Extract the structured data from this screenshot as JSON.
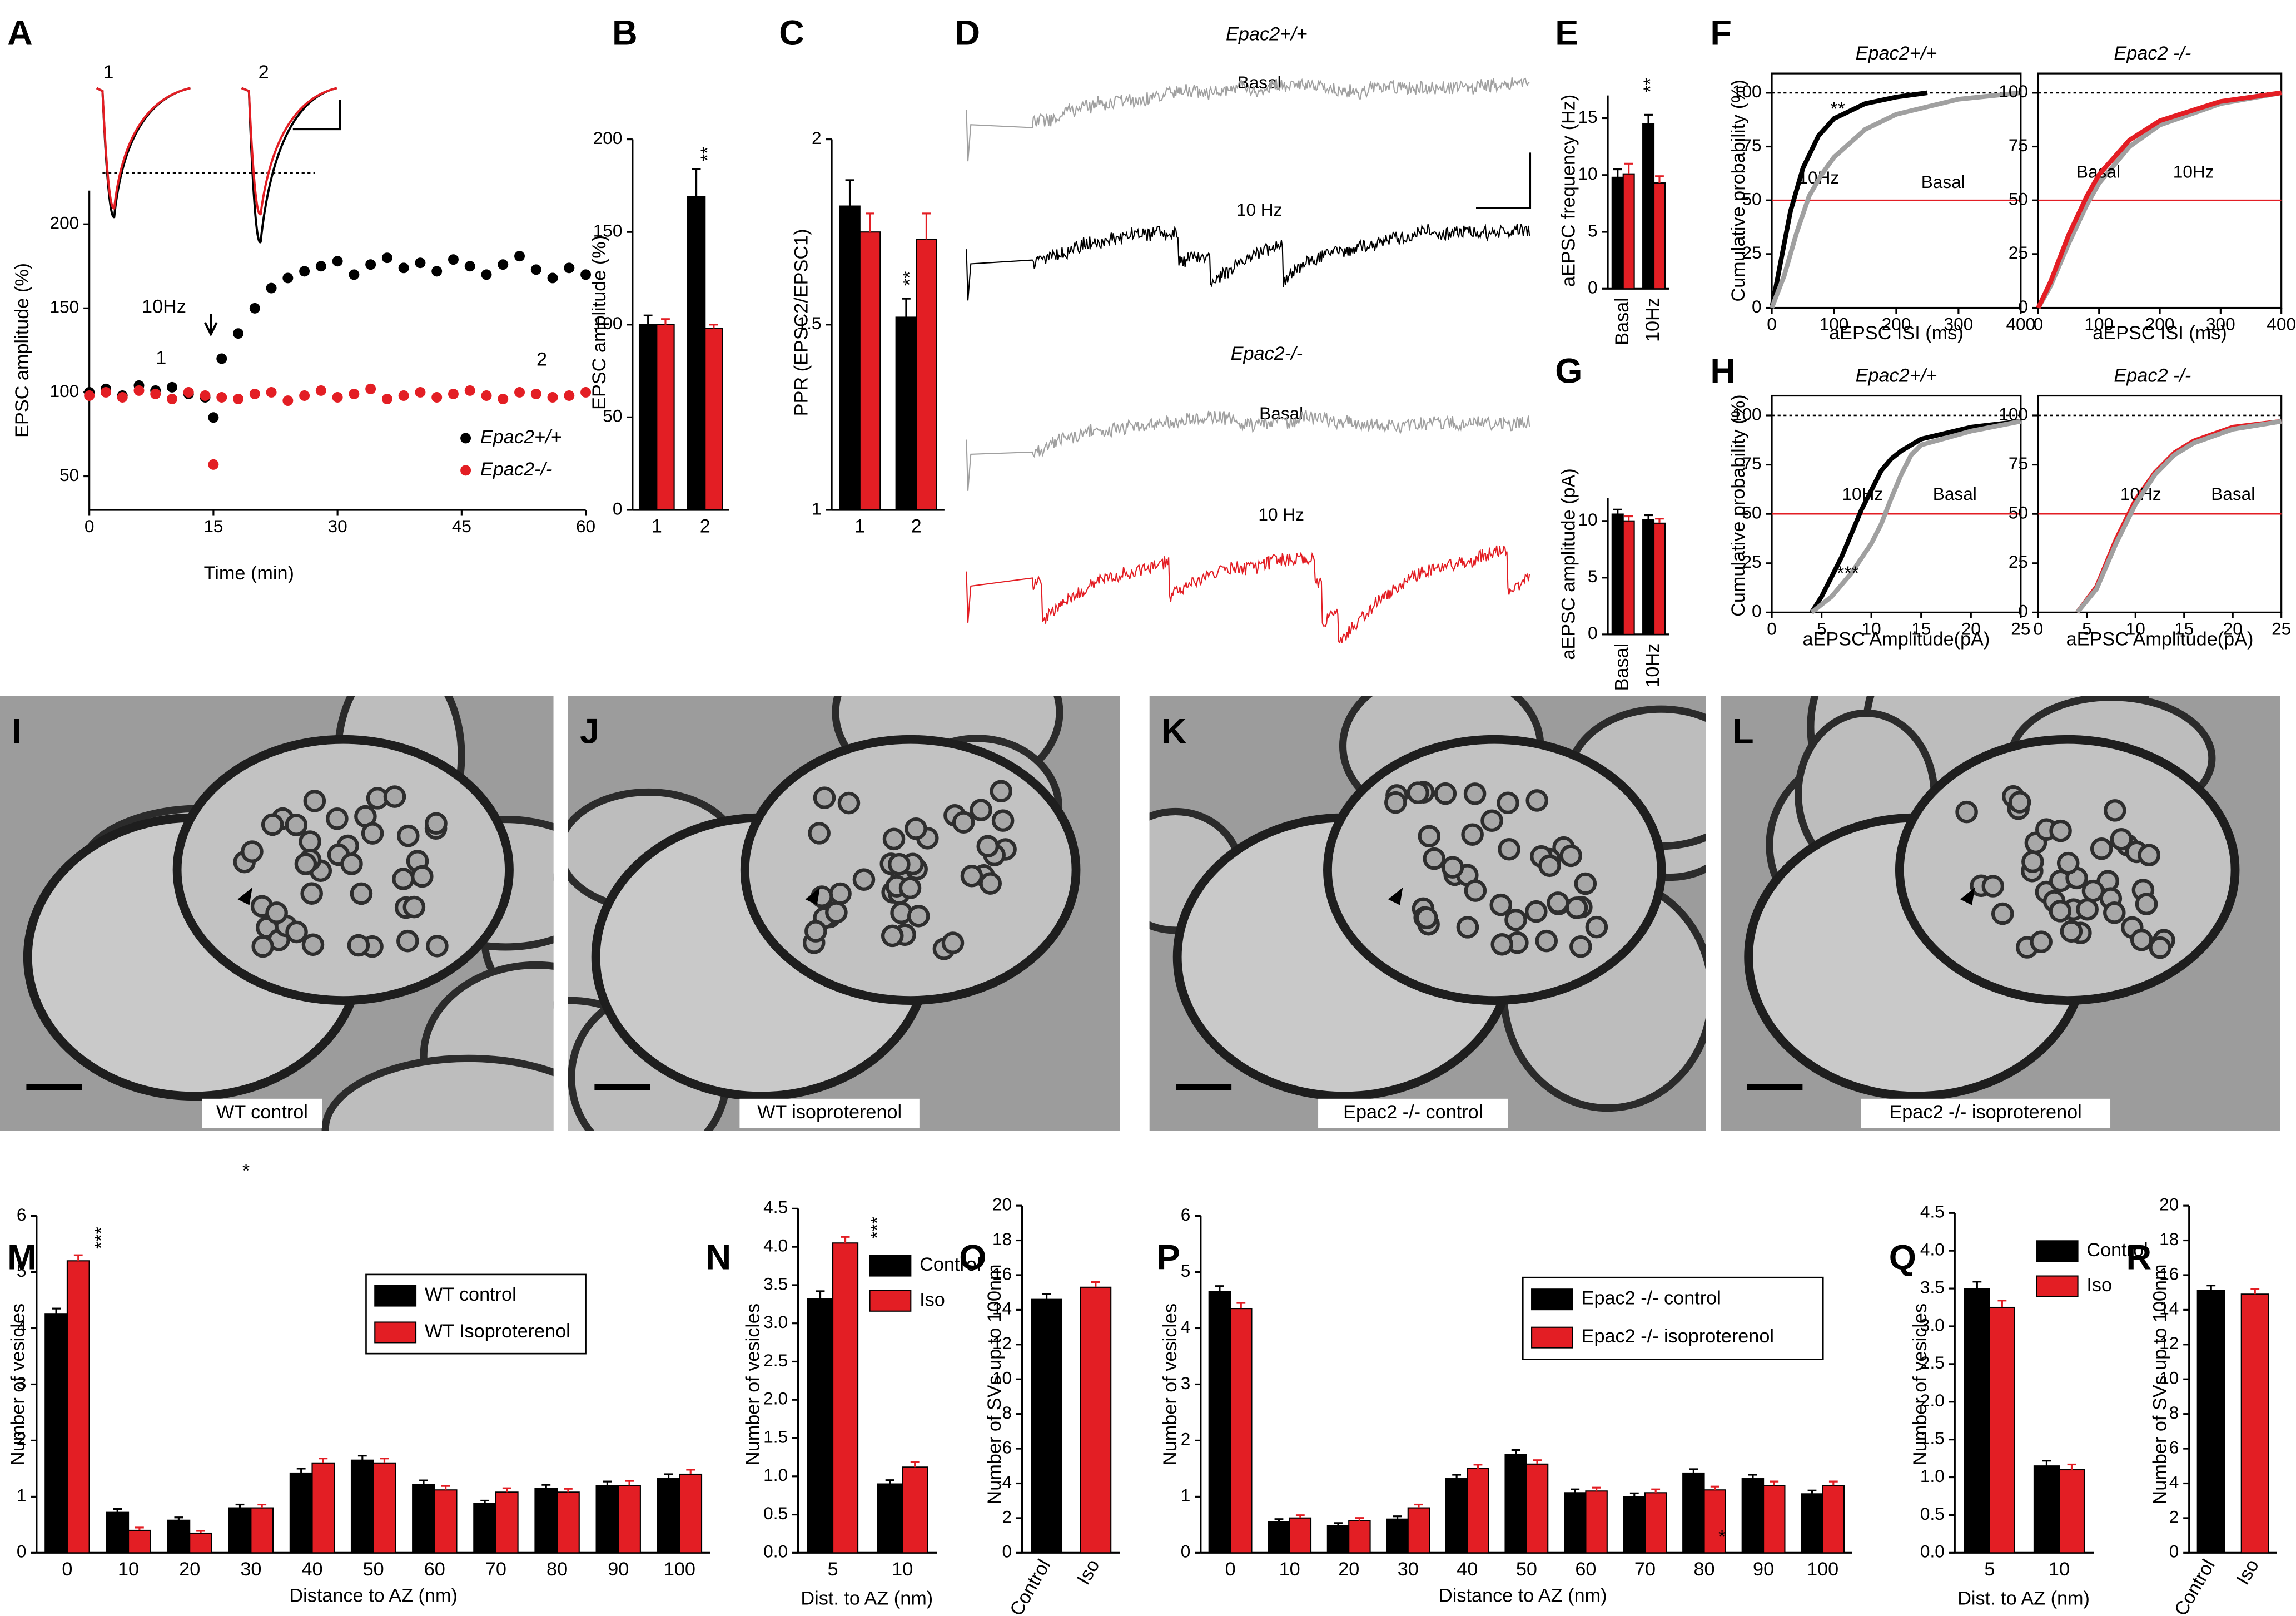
{
  "chart_data": [
    {
      "type": "scatter",
      "panel": "A",
      "xlabel": "Time (min)",
      "ylabel": "EPSC amplitude (%)",
      "xlim": [
        0,
        60
      ],
      "xticks": [
        0,
        15,
        30,
        45,
        60
      ],
      "ylim": [
        30,
        220
      ],
      "yticks": [
        50,
        100,
        150,
        200
      ],
      "x": [
        0,
        2,
        4,
        6,
        8,
        10,
        12,
        14,
        15,
        16,
        18,
        20,
        22,
        24,
        26,
        28,
        30,
        32,
        34,
        36,
        38,
        40,
        42,
        44,
        46,
        48,
        50,
        52,
        54,
        56,
        58,
        60
      ],
      "series": [
        {
          "name": "Epac2+/+",
          "color": "#000000",
          "values": [
            100,
            102,
            98,
            104,
            101,
            103,
            99,
            97,
            85,
            120,
            135,
            150,
            162,
            168,
            172,
            175,
            178,
            170,
            176,
            180,
            174,
            177,
            172,
            179,
            175,
            170,
            176,
            181,
            173,
            168,
            174,
            170
          ]
        },
        {
          "name": "Epac2-/-",
          "color": "#e31e24",
          "values": [
            98,
            100,
            97,
            101,
            99,
            96,
            100,
            98,
            57,
            97,
            96,
            99,
            100,
            95,
            98,
            101,
            97,
            99,
            102,
            96,
            98,
            100,
            97,
            99,
            101,
            98,
            96,
            100,
            99,
            97,
            98,
            100
          ]
        }
      ],
      "legend": "lower right",
      "annotations": [
        "1",
        "2",
        "10Hz",
        "1",
        "2"
      ]
    },
    {
      "type": "bar",
      "panel": "B",
      "ylabel": "EPSC amplitude (%)",
      "categories": [
        "1",
        "2"
      ],
      "series": [
        {
          "color": "#000000",
          "values": [
            100,
            169
          ],
          "errors": [
            5,
            15
          ]
        },
        {
          "color": "#e31e24",
          "values": [
            100,
            98
          ],
          "errors": [
            3,
            2
          ]
        }
      ],
      "ylim": [
        0,
        200
      ],
      "yticks": [
        0,
        50,
        100,
        150,
        200
      ],
      "annotations": [
        "**"
      ]
    },
    {
      "type": "bar",
      "panel": "C",
      "ylabel": "PPR (EPSC2/EPSC1)",
      "categories": [
        "1",
        "2"
      ],
      "series": [
        {
          "color": "#000000",
          "values": [
            1.82,
            1.52
          ],
          "errors": [
            0.07,
            0.05
          ]
        },
        {
          "color": "#e31e24",
          "values": [
            1.75,
            1.73
          ],
          "errors": [
            0.05,
            0.07
          ]
        }
      ],
      "ylim": [
        1,
        2
      ],
      "yticks": [
        1,
        1.5,
        2
      ],
      "annotations": [
        "**"
      ]
    },
    {
      "type": "bar",
      "panel": "E",
      "ylabel": "aEPSC frequency (Hz)",
      "categories": [
        "Basal",
        "10Hz"
      ],
      "series": [
        {
          "color": "#000000",
          "values": [
            9.8,
            14.5
          ],
          "errors": [
            0.7,
            0.8
          ]
        },
        {
          "color": "#e31e24",
          "values": [
            10.1,
            9.3
          ],
          "errors": [
            0.9,
            0.6
          ]
        }
      ],
      "ylim": [
        0,
        17
      ],
      "yticks": [
        0,
        5,
        10,
        15
      ],
      "annotations": [
        "**"
      ]
    },
    {
      "type": "bar",
      "panel": "G",
      "ylabel": "aEPSC amplitude (pA)",
      "categories": [
        "Basal",
        "10Hz"
      ],
      "series": [
        {
          "color": "#000000",
          "values": [
            10.6,
            10.1
          ],
          "errors": [
            0.4,
            0.4
          ]
        },
        {
          "color": "#e31e24",
          "values": [
            10.0,
            9.8
          ],
          "errors": [
            0.4,
            0.4
          ]
        }
      ],
      "ylim": [
        0,
        12
      ],
      "yticks": [
        0,
        5,
        10
      ]
    },
    {
      "type": "line",
      "panel": "F",
      "title": "Epac2+/+",
      "xlabel": "aEPSC ISI (ms)",
      "ylabel": "Cumulative probability (%)",
      "xlim": [
        0,
        400
      ],
      "xticks": [
        0,
        100,
        200,
        300,
        400
      ],
      "ylim": [
        0,
        109
      ],
      "yticks": [
        0,
        25,
        50,
        75,
        100
      ],
      "box": true,
      "reference_lines": [
        {
          "value": 100,
          "color": "#000000",
          "style": "dotted"
        },
        {
          "value": 50,
          "color": "#e31e24",
          "style": "solid"
        }
      ],
      "series": [
        {
          "name": "10Hz",
          "color": "#000000",
          "x": [
            0,
            10,
            20,
            30,
            50,
            75,
            100,
            150,
            200,
            250
          ],
          "values": [
            0,
            15,
            30,
            45,
            65,
            80,
            88,
            95,
            98,
            100
          ]
        },
        {
          "name": "Basal",
          "color": "#a0a0a0",
          "x": [
            0,
            20,
            40,
            60,
            80,
            100,
            150,
            200,
            300,
            400
          ],
          "values": [
            0,
            15,
            35,
            52,
            62,
            70,
            83,
            90,
            97,
            100
          ]
        }
      ],
      "annotations": [
        "**"
      ]
    },
    {
      "type": "line",
      "title": "Epac2 -/-",
      "xlabel": "aEPSC ISI (ms)",
      "xlim": [
        0,
        400
      ],
      "xticks": [
        0,
        100,
        200,
        300,
        400
      ],
      "ylim": [
        0,
        109
      ],
      "yticks": [
        0,
        25,
        50,
        75,
        100
      ],
      "box": true,
      "reference_lines": [
        {
          "value": 100,
          "color": "#000000",
          "style": "dotted"
        },
        {
          "value": 50,
          "color": "#e31e24",
          "style": "solid"
        }
      ],
      "series": [
        {
          "name": "Basal",
          "color": "#a0a0a0",
          "x": [
            0,
            20,
            50,
            80,
            100,
            150,
            200,
            300,
            400
          ],
          "values": [
            0,
            10,
            30,
            48,
            58,
            75,
            85,
            95,
            100
          ]
        },
        {
          "name": "10Hz",
          "color": "#e31e24",
          "x": [
            0,
            20,
            50,
            80,
            100,
            150,
            200,
            300,
            400
          ],
          "values": [
            0,
            12,
            34,
            52,
            62,
            78,
            87,
            96,
            100
          ]
        }
      ]
    },
    {
      "type": "line",
      "panel": "H",
      "title": "Epac2+/+",
      "xlabel": "aEPSC Amplitude(pA)",
      "ylabel": "Cumulative probability (%)",
      "xlim": [
        0,
        25
      ],
      "xticks": [
        0,
        5,
        10,
        15,
        20,
        25
      ],
      "ylim": [
        0,
        110
      ],
      "yticks": [
        0,
        25,
        50,
        75,
        100
      ],
      "box": true,
      "reference_lines": [
        {
          "value": 100,
          "color": "#000000",
          "style": "dotted"
        },
        {
          "value": 50,
          "color": "#e31e24",
          "style": "solid"
        }
      ],
      "series": [
        {
          "name": "10Hz",
          "color": "#000000",
          "x": [
            4,
            5,
            6,
            7,
            8,
            9,
            10,
            11,
            12,
            13,
            15,
            20,
            25
          ],
          "values": [
            0,
            8,
            18,
            28,
            40,
            52,
            62,
            72,
            78,
            82,
            88,
            94,
            97
          ]
        },
        {
          "name": "Basal",
          "color": "#a0a0a0",
          "x": [
            4,
            6,
            8,
            10,
            11,
            12,
            13,
            14,
            15,
            20,
            25
          ],
          "values": [
            0,
            8,
            20,
            35,
            45,
            58,
            70,
            80,
            85,
            92,
            97
          ]
        }
      ],
      "annotations": [
        "***"
      ]
    },
    {
      "type": "line",
      "title": "Epac2 -/-",
      "xlabel": "aEPSC Amplitude(pA)",
      "xlim": [
        0,
        25
      ],
      "xticks": [
        0,
        5,
        10,
        15,
        20,
        25
      ],
      "ylim": [
        0,
        110
      ],
      "yticks": [
        0,
        25,
        50,
        75,
        100
      ],
      "box": true,
      "reference_lines": [
        {
          "value": 100,
          "color": "#000000",
          "style": "dotted"
        },
        {
          "value": 50,
          "color": "#e31e24",
          "style": "solid"
        }
      ],
      "series": [
        {
          "name": "10Hz",
          "color": "#e31e24",
          "x": [
            4,
            6,
            8,
            10,
            12,
            14,
            16,
            20,
            25
          ],
          "values": [
            0,
            13,
            37,
            57,
            71,
            81,
            87,
            94,
            97
          ]
        },
        {
          "name": "Basal",
          "color": "#a0a0a0",
          "x": [
            4,
            6,
            8,
            10,
            12,
            14,
            16,
            20,
            25
          ],
          "values": [
            0,
            12,
            35,
            55,
            70,
            80,
            86,
            93,
            97
          ]
        }
      ]
    },
    {
      "type": "bar",
      "panel": "M",
      "xlabel": "Distance to AZ (nm)",
      "ylabel": "Number of vesicles",
      "categories": [
        "0",
        "10",
        "20",
        "30",
        "40",
        "50",
        "60",
        "70",
        "80",
        "90",
        "100"
      ],
      "series": [
        {
          "name": "WT control",
          "color": "#000000",
          "values": [
            4.25,
            0.72,
            0.58,
            0.8,
            1.42,
            1.65,
            1.22,
            0.88,
            1.15,
            1.2,
            1.32
          ],
          "errors": [
            0.1,
            0.06,
            0.05,
            0.06,
            0.08,
            0.08,
            0.07,
            0.05,
            0.06,
            0.07,
            0.08
          ]
        },
        {
          "name": "WT Isoproterenol",
          "color": "#e31e24",
          "values": [
            5.2,
            0.4,
            0.35,
            0.8,
            1.6,
            1.6,
            1.12,
            1.08,
            1.08,
            1.2,
            1.4
          ],
          "errors": [
            0.1,
            0.05,
            0.04,
            0.06,
            0.08,
            0.08,
            0.07,
            0.07,
            0.06,
            0.08,
            0.08
          ]
        }
      ],
      "ylim": [
        0,
        6
      ],
      "yticks": [
        0,
        1,
        2,
        3,
        4,
        5,
        6
      ],
      "legend": "upper right",
      "annotations": [
        "***",
        "*"
      ]
    },
    {
      "type": "bar",
      "panel": "N",
      "xlabel": "Dist. to AZ (nm)",
      "ylabel": "Number of vesicles",
      "categories": [
        "5",
        "10"
      ],
      "series": [
        {
          "name": "Control",
          "color": "#000000",
          "values": [
            3.32,
            0.9
          ],
          "errors": [
            0.1,
            0.05
          ]
        },
        {
          "name": "Iso",
          "color": "#e31e24",
          "values": [
            4.05,
            1.12
          ],
          "errors": [
            0.08,
            0.07
          ]
        }
      ],
      "ylim": [
        0,
        4.5
      ],
      "yticks": [
        {
          "value": 0,
          "label": "0.0"
        },
        {
          "value": 0.5,
          "label": "0.5"
        },
        {
          "value": 1,
          "label": "1.0"
        },
        {
          "value": 1.5,
          "label": "1.5"
        },
        {
          "value": 2,
          "label": "2.0"
        },
        {
          "value": 2.5,
          "label": "2.5"
        },
        {
          "value": 3,
          "label": "3.0"
        },
        {
          "value": 3.5,
          "label": "3.5"
        },
        {
          "value": 4,
          "label": "4.0"
        },
        {
          "value": 4.5,
          "label": "4.5"
        }
      ],
      "legend": "upper right",
      "annotations": [
        "***"
      ]
    },
    {
      "type": "bar",
      "panel": "O",
      "ylabel": "Number of SVs up to 100nm",
      "categories": [
        "Control",
        "Iso"
      ],
      "series": [
        {
          "colors": [
            "#000000",
            "#e31e24"
          ],
          "values": [
            14.6,
            15.3
          ],
          "errors": [
            0.3,
            0.3
          ]
        }
      ],
      "ylim": [
        0,
        20
      ],
      "yticks": [
        0,
        2,
        4,
        6,
        8,
        10,
        12,
        14,
        16,
        18,
        20
      ]
    },
    {
      "type": "bar",
      "panel": "P",
      "xlabel": "Distance to AZ (nm)",
      "ylabel": "Number of vesicles",
      "categories": [
        "0",
        "10",
        "20",
        "30",
        "40",
        "50",
        "60",
        "70",
        "80",
        "90",
        "100"
      ],
      "series": [
        {
          "name": "Epac2 -/- control",
          "color": "#000000",
          "values": [
            4.65,
            0.55,
            0.48,
            0.6,
            1.32,
            1.75,
            1.07,
            1.0,
            1.42,
            1.32,
            1.05
          ],
          "errors": [
            0.1,
            0.05,
            0.05,
            0.05,
            0.07,
            0.08,
            0.06,
            0.06,
            0.07,
            0.07,
            0.06
          ]
        },
        {
          "name": "Epac2 -/- isoproterenol",
          "color": "#e31e24",
          "values": [
            4.35,
            0.62,
            0.57,
            0.8,
            1.5,
            1.58,
            1.1,
            1.07,
            1.12,
            1.2,
            1.2
          ],
          "errors": [
            0.1,
            0.05,
            0.05,
            0.06,
            0.07,
            0.07,
            0.06,
            0.06,
            0.06,
            0.07,
            0.07
          ]
        }
      ],
      "ylim": [
        0,
        6
      ],
      "yticks": [
        0,
        1,
        2,
        3,
        4,
        5,
        6
      ],
      "legend": "upper right",
      "annotations": [
        "*"
      ]
    },
    {
      "type": "bar",
      "panel": "Q",
      "xlabel": "Dist. to AZ (nm)",
      "ylabel": "Number of vesicles",
      "categories": [
        "5",
        "10"
      ],
      "series": [
        {
          "name": "Control",
          "color": "#000000",
          "values": [
            3.5,
            1.15
          ],
          "errors": [
            0.09,
            0.07
          ]
        },
        {
          "name": "Iso",
          "color": "#e31e24",
          "values": [
            3.25,
            1.1
          ],
          "errors": [
            0.09,
            0.07
          ]
        }
      ],
      "ylim": [
        0,
        4.5
      ],
      "yticks": [
        {
          "value": 0,
          "label": "0.0"
        },
        {
          "value": 0.5,
          "label": "0.5"
        },
        {
          "value": 1,
          "label": "1.0"
        },
        {
          "value": 1.5,
          "label": "1.5"
        },
        {
          "value": 2,
          "label": "2.0"
        },
        {
          "value": 2.5,
          "label": "2.5"
        },
        {
          "value": 3,
          "label": "3.0"
        },
        {
          "value": 3.5,
          "label": "3.5"
        },
        {
          "value": 4,
          "label": "4.0"
        },
        {
          "value": 4.5,
          "label": "4.5"
        }
      ],
      "legend": "upper right"
    },
    {
      "type": "bar",
      "panel": "R",
      "ylabel": "Number of SVs up to 100nm",
      "categories": [
        "Control",
        "Iso"
      ],
      "series": [
        {
          "colors": [
            "#000000",
            "#e31e24"
          ],
          "values": [
            15.1,
            14.9
          ],
          "errors": [
            0.3,
            0.3
          ]
        }
      ],
      "ylim": [
        0,
        20
      ],
      "yticks": [
        0,
        2,
        4,
        6,
        8,
        10,
        12,
        14,
        16,
        18,
        20
      ]
    }
  ],
  "panel_d": {
    "panel": "D",
    "titles": [
      "Epac2+/+",
      "Epac2-/-"
    ],
    "labels": [
      "Basal",
      "10 Hz",
      "Basal",
      "10 Hz"
    ]
  },
  "micrographs": [
    {
      "panel": "I",
      "label": "WT control"
    },
    {
      "panel": "J",
      "label": "WT isoproterenol"
    },
    {
      "panel": "K",
      "label": "Epac2 -/- control"
    },
    {
      "panel": "L",
      "label": "Epac2 -/- isoproterenol"
    }
  ]
}
